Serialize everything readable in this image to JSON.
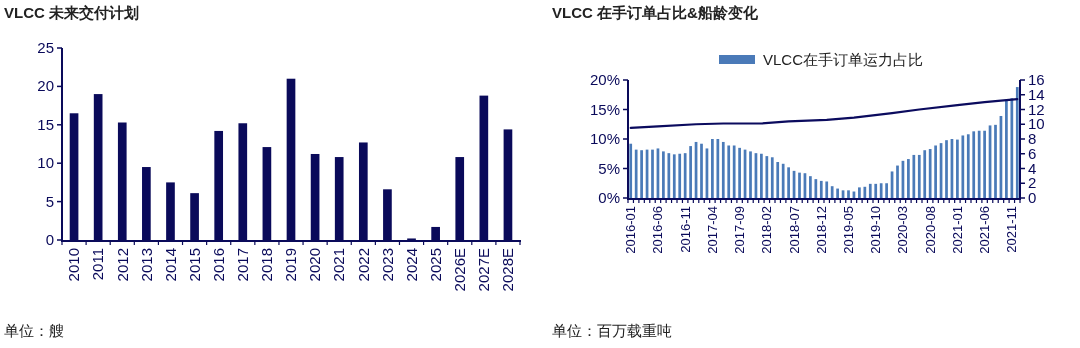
{
  "chart_data": [
    {
      "type": "bar",
      "title": "VLCC 未来交付计划",
      "categories": [
        "2010",
        "2011",
        "2012",
        "2013",
        "2014",
        "2015",
        "2016",
        "2017",
        "2018",
        "2019",
        "2020",
        "2021",
        "2022",
        "2023",
        "2024",
        "2025",
        "2026E",
        "2027E",
        "2028E"
      ],
      "series": [
        {
          "color": "#0a0a5a",
          "values": [
            16.5,
            19.0,
            15.3,
            9.5,
            7.5,
            6.1,
            14.2,
            15.2,
            12.1,
            21.0,
            11.2,
            10.8,
            12.7,
            6.6,
            0.2,
            1.7,
            10.8,
            18.8,
            14.4
          ]
        }
      ],
      "ylim": [
        0,
        25
      ],
      "yticks": [
        0,
        5,
        10,
        15,
        20,
        25
      ],
      "grid": false,
      "legend": false,
      "annotations": [
        "单位：艘"
      ]
    },
    {
      "type": "bar",
      "title": "VLCC 在手订单占比&船龄变化",
      "categories": [
        "2016-01",
        null,
        null,
        null,
        null,
        "2016-06",
        null,
        null,
        null,
        null,
        "2016-11",
        null,
        null,
        null,
        null,
        "2017-04",
        null,
        null,
        null,
        null,
        "2017-09",
        null,
        null,
        null,
        null,
        "2018-02",
        null,
        null,
        null,
        null,
        "2018-07",
        null,
        null,
        null,
        null,
        "2018-12",
        null,
        null,
        null,
        null,
        "2019-05",
        null,
        null,
        null,
        null,
        "2019-10",
        null,
        null,
        null,
        null,
        "2020-03",
        null,
        null,
        null,
        null,
        "2020-08",
        null,
        null,
        null,
        null,
        "2021-01",
        null,
        null,
        null,
        null,
        "2021-06",
        null,
        null,
        null,
        null,
        "2021-11",
        null
      ],
      "series": [
        {
          "name": "VLCC在手订单运力占比",
          "type": "bar",
          "color": "#4a7ab8",
          "values": [
            9.2,
            8.2,
            8.1,
            8.2,
            8.2,
            8.4,
            7.9,
            7.6,
            7.4,
            7.5,
            7.6,
            8.8,
            9.5,
            9.2,
            8.4,
            10.0,
            10.0,
            9.5,
            8.9,
            8.9,
            8.5,
            8.2,
            7.9,
            7.6,
            7.5,
            7.1,
            6.9,
            6.1,
            5.8,
            5.2,
            4.6,
            4.3,
            4.2,
            3.7,
            3.2,
            2.9,
            2.8,
            2.0,
            1.6,
            1.3,
            1.3,
            1.1,
            1.8,
            1.9,
            2.4,
            2.4,
            2.5,
            2.5,
            4.5,
            5.5,
            6.3,
            6.6,
            7.3,
            7.3,
            8.1,
            8.3,
            8.9,
            9.3,
            9.8,
            10.0,
            9.9,
            10.6,
            10.8,
            11.3,
            11.4,
            11.4,
            12.3,
            12.4,
            13.9,
            16.6,
            16.9,
            18.8
          ]
        },
        {
          "type": "line",
          "axis": "y2",
          "color": "#0b0b5e",
          "values": [
            9.5,
            null,
            null,
            null,
            null,
            9.7,
            null,
            null,
            null,
            null,
            null,
            null,
            10.0,
            null,
            null,
            null,
            null,
            10.1,
            null,
            null,
            null,
            null,
            null,
            null,
            10.1,
            null,
            null,
            null,
            null,
            10.4,
            null,
            null,
            null,
            null,
            null,
            null,
            10.6,
            null,
            null,
            null,
            null,
            10.9,
            null,
            null,
            null,
            null,
            null,
            null,
            11.5,
            null,
            null,
            null,
            null,
            12.0,
            null,
            null,
            null,
            null,
            null,
            null,
            12.6,
            null,
            null,
            null,
            null,
            13.0,
            null,
            null,
            null,
            null,
            null,
            13.4
          ]
        }
      ],
      "ylim": [
        0,
        20
      ],
      "yticks": [
        {
          "value": 0,
          "label": "0%"
        },
        {
          "value": 5,
          "label": "5%"
        },
        {
          "value": 10,
          "label": "10%"
        },
        {
          "value": 15,
          "label": "15%"
        },
        {
          "value": 20,
          "label": "20%"
        }
      ],
      "y2lim": [
        0,
        16
      ],
      "y2ticks": [
        0,
        2,
        4,
        6,
        8,
        10,
        12,
        14,
        16
      ],
      "grid": false,
      "legend": "top",
      "annotations": [
        "单位：百万载重吨"
      ]
    }
  ]
}
